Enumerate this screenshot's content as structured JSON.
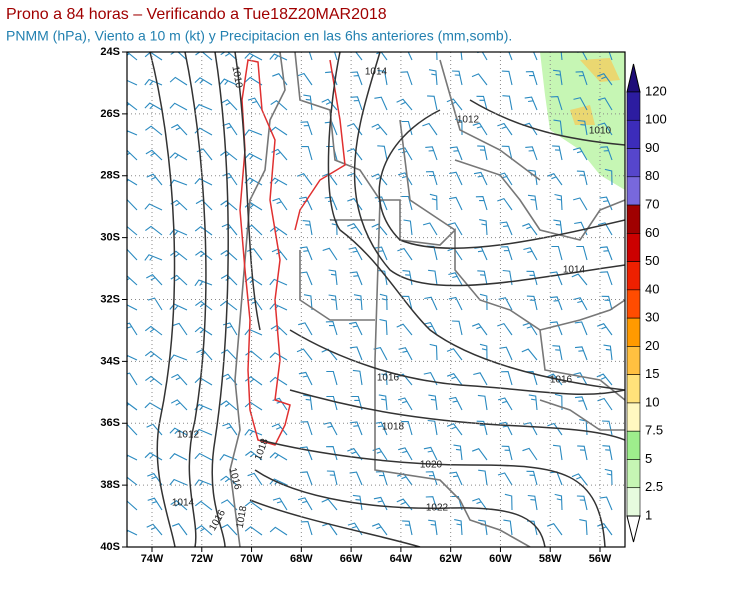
{
  "header": {
    "title": "Prono a 84 horas – Verificando a Tue18Z20MAR2018",
    "subtitle": "PNMM (hPa), Viento a 10 m (kt) y Precipitacion en las 6hs anteriores (mm,somb)."
  },
  "map": {
    "lat_labels": [
      "24S",
      "26S",
      "28S",
      "30S",
      "32S",
      "34S",
      "36S",
      "38S",
      "40S"
    ],
    "lon_labels": [
      "74W",
      "72W",
      "70W",
      "68W",
      "66W",
      "64W",
      "62W",
      "60W",
      "58W",
      "56W"
    ],
    "contour_labels": [
      "1010",
      "1014",
      "1012",
      "1010",
      "1014",
      "1016",
      "1016",
      "1018",
      "1020",
      "1022",
      "1012",
      "1014",
      "1016",
      "1018",
      "1016",
      "1018"
    ]
  },
  "colorbar": {
    "labels": [
      "120",
      "100",
      "90",
      "80",
      "70",
      "60",
      "50",
      "40",
      "30",
      "20",
      "15",
      "10",
      "7.5",
      "5",
      "2.5",
      "1"
    ],
    "colors": [
      "#1e0c78",
      "#2c1ca0",
      "#3c2cba",
      "#5646cc",
      "#7868dc",
      "#a00000",
      "#cc0000",
      "#ee2000",
      "#ff4c00",
      "#ff9a00",
      "#ffc040",
      "#ffe27a",
      "#fff8c0",
      "#9eee8c",
      "#c6f6b4",
      "#e6fbde",
      "#ffffff"
    ]
  }
}
